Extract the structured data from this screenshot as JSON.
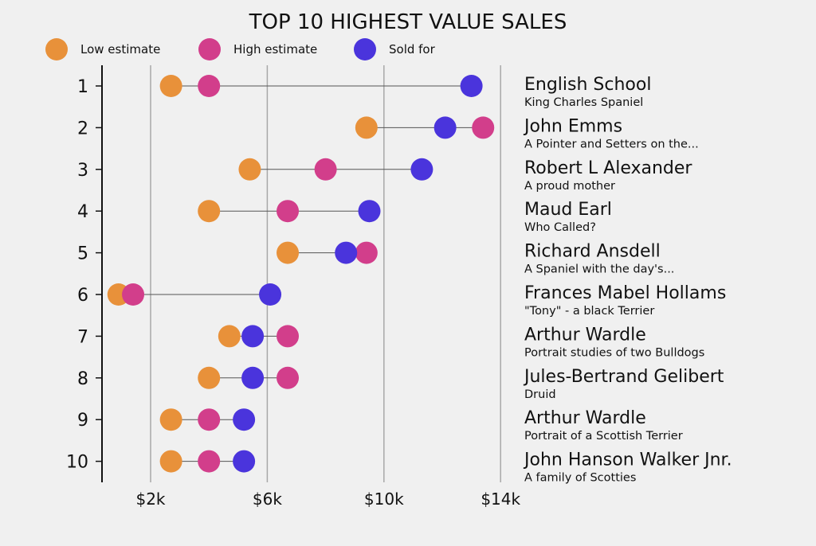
{
  "chart_data": {
    "type": "dot-range",
    "title": "TOP 10 HIGHEST VALUE SALES",
    "legend": [
      {
        "key": "low",
        "label": "Low estimate",
        "color": "#E8913A"
      },
      {
        "key": "high",
        "label": "High estimate",
        "color": "#D23E8B"
      },
      {
        "key": "sold",
        "label": "Sold for",
        "color": "#4A34DC"
      }
    ],
    "legend_position": "top-left",
    "x_ticks": [
      {
        "value": 2,
        "label": "$2k"
      },
      {
        "value": 6,
        "label": "$6k"
      },
      {
        "value": 10,
        "label": "$10k"
      },
      {
        "value": 14,
        "label": "$14k"
      }
    ],
    "x_unit": "thousand USD",
    "xlim": [
      -0.3,
      14
    ],
    "rows": [
      {
        "rank": "1",
        "artist": "English School",
        "title": "King Charles Spaniel",
        "low": 2.7,
        "high": 4.0,
        "sold": 13.0
      },
      {
        "rank": "2",
        "artist": "John Emms",
        "title": "A Pointer and Setters on the...",
        "low": 9.4,
        "high": 13.4,
        "sold": 12.1
      },
      {
        "rank": "3",
        "artist": "Robert L Alexander",
        "title": "A proud mother",
        "low": 5.4,
        "high": 8.0,
        "sold": 11.3
      },
      {
        "rank": "4",
        "artist": "Maud Earl",
        "title": "Who Called?",
        "low": 4.0,
        "high": 6.7,
        "sold": 9.5
      },
      {
        "rank": "5",
        "artist": "Richard Ansdell",
        "title": "A Spaniel with the day's...",
        "low": 6.7,
        "high": 9.4,
        "sold": 8.7
      },
      {
        "rank": "6",
        "artist": "Frances Mabel Hollams",
        "title": "\"Tony\" - a black Terrier",
        "low": 0.9,
        "high": 1.4,
        "sold": 6.1
      },
      {
        "rank": "7",
        "artist": "Arthur Wardle",
        "title": "Portrait studies of two Bulldogs",
        "low": 4.7,
        "high": 6.7,
        "sold": 5.5
      },
      {
        "rank": "8",
        "artist": "Jules-Bertrand Gelibert",
        "title": "Druid",
        "low": 4.0,
        "high": 6.7,
        "sold": 5.5
      },
      {
        "rank": "9",
        "artist": "Arthur Wardle",
        "title": "Portrait of a Scottish Terrier",
        "low": 2.7,
        "high": 4.0,
        "sold": 5.2
      },
      {
        "rank": "10",
        "artist": "John Hanson Walker Jnr.",
        "title": "A family of Scotties",
        "low": 2.7,
        "high": 4.0,
        "sold": 5.2
      }
    ]
  }
}
